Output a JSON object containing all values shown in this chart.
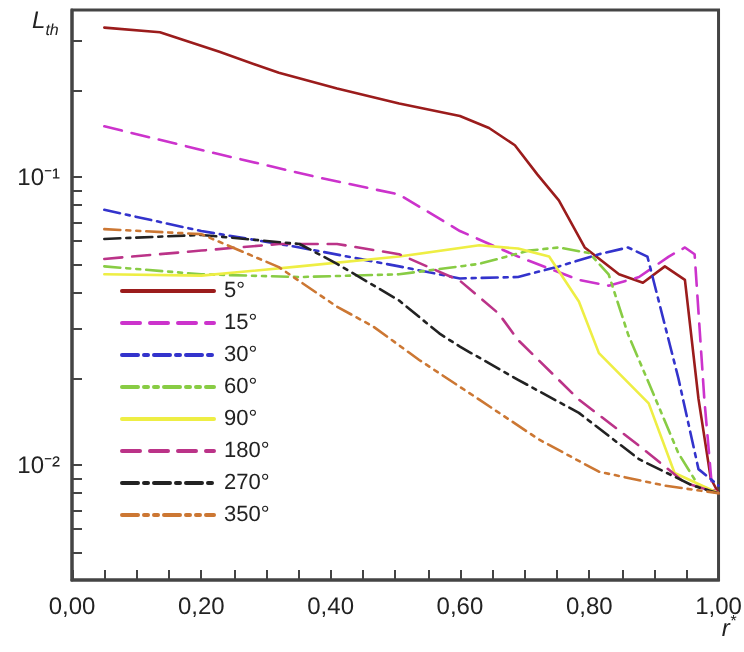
{
  "chart_data": {
    "type": "line",
    "xlabel": "r$^{*}$",
    "ylabel": "L$_{th}$",
    "log": "y",
    "grid": false,
    "legend": "bottom left",
    "marker": "none",
    "xlim": [
      0,
      1
    ],
    "xticks": [
      {
        "value": 0,
        "label": "0,00"
      },
      {
        "value": 0.05,
        "label": null
      },
      {
        "value": 0.1,
        "label": null
      },
      {
        "value": 0.15,
        "label": null
      },
      {
        "value": 0.2,
        "label": "0,20"
      },
      {
        "value": 0.25,
        "label": null
      },
      {
        "value": 0.3,
        "label": null
      },
      {
        "value": 0.35,
        "label": null
      },
      {
        "value": 0.4,
        "label": "0,40"
      },
      {
        "value": 0.45,
        "label": null
      },
      {
        "value": 0.5,
        "label": null
      },
      {
        "value": 0.55,
        "label": null
      },
      {
        "value": 0.6,
        "label": "0,60"
      },
      {
        "value": 0.65,
        "label": null
      },
      {
        "value": 0.7,
        "label": null
      },
      {
        "value": 0.75,
        "label": null
      },
      {
        "value": 0.8,
        "label": "0,80"
      },
      {
        "value": 0.85,
        "label": null
      },
      {
        "value": 0.9,
        "label": null
      },
      {
        "value": 0.95,
        "label": null
      },
      {
        "value": 1,
        "label": "1,00"
      }
    ],
    "ylim": [
      0.004,
      0.38
    ],
    "yticks": [
      {
        "value": 0.005,
        "label": null
      },
      {
        "value": 0.006,
        "label": null
      },
      {
        "value": 0.007,
        "label": null
      },
      {
        "value": 0.008,
        "label": null
      },
      {
        "value": 0.009,
        "label": null
      },
      {
        "value": 0.01,
        "label": "10⁻²"
      },
      {
        "value": 0.02,
        "label": null
      },
      {
        "value": 0.03,
        "label": null
      },
      {
        "value": 0.04,
        "label": null
      },
      {
        "value": 0.05,
        "label": null
      },
      {
        "value": 0.06,
        "label": null
      },
      {
        "value": 0.07,
        "label": null
      },
      {
        "value": 0.08,
        "label": null
      },
      {
        "value": 0.09,
        "label": null
      },
      {
        "value": 0.1,
        "label": "10⁻¹"
      },
      {
        "value": 0.2,
        "label": null
      },
      {
        "value": 0.3,
        "label": null
      }
    ],
    "series": [
      {
        "name": "5°",
        "color": "#9b1c1c",
        "line_style": "solid",
        "x": [
          0.05,
          0.136,
          0.228,
          0.32,
          0.41,
          0.506,
          0.6,
          0.645,
          0.685,
          0.72,
          0.753,
          0.793,
          0.846,
          0.883,
          0.917,
          0.948,
          0.969,
          0.988,
          1.0
        ],
        "values": [
          0.33,
          0.318,
          0.272,
          0.23,
          0.203,
          0.18,
          0.163,
          0.148,
          0.129,
          0.102,
          0.083,
          0.057,
          0.046,
          0.043,
          0.049,
          0.044,
          0.017,
          0.009,
          0.008
        ]
      },
      {
        "name": "15°",
        "color": "#cc33cc",
        "line_style": "dashed",
        "x": [
          0.05,
          0.228,
          0.383,
          0.506,
          0.6,
          0.69,
          0.784,
          0.83,
          0.877,
          0.923,
          0.948,
          0.963,
          0.978,
          0.99,
          1.0
        ],
        "values": [
          0.15,
          0.12,
          0.0995,
          0.087,
          0.065,
          0.053,
          0.044,
          0.042,
          0.045,
          0.053,
          0.057,
          0.054,
          0.017,
          0.0083,
          0.008
        ]
      },
      {
        "name": "30°",
        "color": "#3333cc",
        "line_style": "dashdot",
        "x": [
          0.05,
          0.2,
          0.352,
          0.506,
          0.6,
          0.69,
          0.753,
          0.815,
          0.86,
          0.89,
          0.938,
          0.969,
          1.0
        ],
        "values": [
          0.077,
          0.065,
          0.057,
          0.049,
          0.0445,
          0.045,
          0.049,
          0.054,
          0.057,
          0.053,
          0.02,
          0.0097,
          0.0085
        ]
      },
      {
        "name": "60°",
        "color": "#88cc44",
        "line_style": "dashdotdot",
        "x": [
          0.05,
          0.2,
          0.352,
          0.506,
          0.63,
          0.707,
          0.753,
          0.8,
          0.83,
          0.86,
          0.89,
          0.938,
          0.969,
          1.0
        ],
        "values": [
          0.049,
          0.046,
          0.045,
          0.046,
          0.05,
          0.0556,
          0.057,
          0.0545,
          0.046,
          0.0285,
          0.0198,
          0.011,
          0.0085,
          0.008
        ]
      },
      {
        "name": "90°",
        "color": "#eeee44",
        "line_style": "solid",
        "x": [
          0.05,
          0.2,
          0.352,
          0.506,
          0.63,
          0.69,
          0.738,
          0.784,
          0.815,
          0.892,
          0.932,
          1.0
        ],
        "values": [
          0.046,
          0.0455,
          0.049,
          0.053,
          0.058,
          0.0565,
          0.053,
          0.037,
          0.0245,
          0.0164,
          0.0094,
          0.008
        ]
      },
      {
        "name": "180°",
        "color": "#bb3388",
        "line_style": "dashed",
        "x": [
          0.05,
          0.2,
          0.32,
          0.41,
          0.506,
          0.6,
          0.66,
          0.69,
          0.784,
          0.877,
          0.948,
          1.0
        ],
        "values": [
          0.052,
          0.0556,
          0.0586,
          0.0586,
          0.054,
          0.0437,
          0.0336,
          0.0272,
          0.0169,
          0.0117,
          0.0087,
          0.008
        ]
      },
      {
        "name": "270°",
        "color": "#222222",
        "line_style": "dashdot",
        "x": [
          0.05,
          0.2,
          0.352,
          0.41,
          0.506,
          0.568,
          0.6,
          0.69,
          0.784,
          0.877,
          0.96,
          1.0
        ],
        "values": [
          0.061,
          0.063,
          0.0586,
          0.05,
          0.0373,
          0.0287,
          0.0258,
          0.0198,
          0.0152,
          0.0105,
          0.0085,
          0.008
        ]
      },
      {
        "name": "350°",
        "color": "#cc7733",
        "line_style": "dashdotdot",
        "x": [
          0.05,
          0.2,
          0.32,
          0.41,
          0.466,
          0.537,
          0.63,
          0.722,
          0.815,
          0.917,
          1.0
        ],
        "values": [
          0.066,
          0.0634,
          0.0487,
          0.0355,
          0.0303,
          0.0232,
          0.0169,
          0.0123,
          0.0095,
          0.0085,
          0.008
        ]
      }
    ]
  }
}
